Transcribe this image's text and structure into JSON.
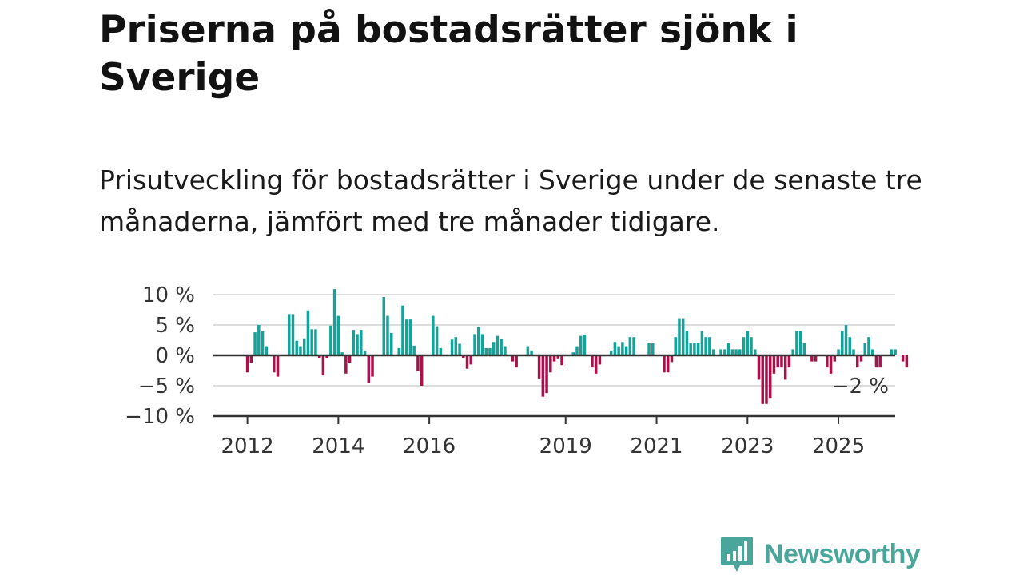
{
  "header": {
    "title": "Priserna på bostadsrätter sjönk i Sverige",
    "subtitle": "Prisutveckling för bostadsrätter i Sverige under de senaste tre månaderna, jämfört med tre månader tidigare."
  },
  "brand": {
    "name": "Newsworthy",
    "icon": "newsworthy-logo-icon",
    "color": "#4aa69a"
  },
  "chart_data": {
    "type": "bar",
    "title": "",
    "xlabel": "",
    "ylabel": "",
    "ylim": [
      -10,
      10
    ],
    "y_ticks": [
      {
        "value": 10,
        "label": "10 %"
      },
      {
        "value": 5,
        "label": "5 %"
      },
      {
        "value": 0,
        "label": "0 %"
      },
      {
        "value": -5,
        "label": "−5 %"
      },
      {
        "value": -10,
        "label": "−10 %"
      }
    ],
    "x_ticks": [
      {
        "date": "2012-01",
        "label": "2012"
      },
      {
        "date": "2014-01",
        "label": "2014"
      },
      {
        "date": "2016-01",
        "label": "2016"
      },
      {
        "date": "2019-01",
        "label": "2019"
      },
      {
        "date": "2021-01",
        "label": "2021"
      },
      {
        "date": "2023-01",
        "label": "2023"
      },
      {
        "date": "2025-01",
        "label": "2025"
      }
    ],
    "x_start": "2012-01",
    "last_value_label": "−2 %",
    "grid": true,
    "legend": "none",
    "colors": {
      "positive": "#14a39a",
      "negative": "#a8124a",
      "grid": "#dddddd",
      "axis": "#333333"
    },
    "series": [
      {
        "values": [
          -2.8,
          -1.2,
          3.8,
          5.0,
          4.0,
          1.5,
          0.0,
          -2.8,
          -3.5,
          0.0,
          0.0,
          6.8,
          6.8,
          2.4,
          1.5,
          2.8,
          7.4,
          4.3,
          4.3,
          -0.4,
          -3.3,
          -0.4,
          4.9,
          10.9,
          6.5,
          0.5,
          -3.0,
          -1.2,
          4.2,
          3.5,
          4.2,
          0.8,
          -4.6,
          -3.5,
          0.0,
          0.0,
          9.6,
          6.5,
          3.7,
          0.0,
          1.2,
          8.2,
          5.9,
          5.9,
          1.6,
          -2.6,
          -5.0,
          0.0,
          0.0,
          6.5,
          4.8,
          1.2,
          0.0,
          0.0,
          2.6,
          3.0,
          1.9,
          -0.4,
          -2.2,
          -1.5,
          3.5,
          4.7,
          3.5,
          1.2,
          1.2,
          2.2,
          3.2,
          2.7,
          1.5,
          0.0,
          -1.0,
          -2.0,
          0.0,
          0.0,
          1.5,
          0.8,
          0.0,
          -3.8,
          -6.8,
          -6.2,
          -2.8,
          -1.0,
          -0.5,
          -1.6,
          0.0,
          0.0,
          0.5,
          1.5,
          3.2,
          3.4,
          0.0,
          -2.0,
          -3.0,
          -1.5,
          0.0,
          0.0,
          0.8,
          2.2,
          1.5,
          2.2,
          1.5,
          3.0,
          3.0,
          0.0,
          0.0,
          0.0,
          2.0,
          2.0,
          0.0,
          0.0,
          -2.8,
          -2.8,
          -1.1,
          3.0,
          6.1,
          6.1,
          4.0,
          2.0,
          2.0,
          2.0,
          4.0,
          3.0,
          3.0,
          1.0,
          0.0,
          1.0,
          1.0,
          2.0,
          1.0,
          1.0,
          1.0,
          3.0,
          4.0,
          3.0,
          1.0,
          -4.0,
          -8.0,
          -8.0,
          -7.0,
          -3.0,
          -2.0,
          -2.0,
          -4.0,
          -2.0,
          1.0,
          4.0,
          4.0,
          2.0,
          0.0,
          -1.0,
          -1.0,
          0.0,
          0.0,
          -2.0,
          -3.0,
          -1.0,
          1.0,
          4.0,
          5.0,
          3.0,
          1.0,
          -2.0,
          -1.0,
          2.0,
          3.0,
          1.0,
          -2.0,
          -2.0,
          0.0,
          0.0,
          1.0,
          1.0,
          0.0,
          -1.0,
          -2.0
        ]
      }
    ]
  }
}
